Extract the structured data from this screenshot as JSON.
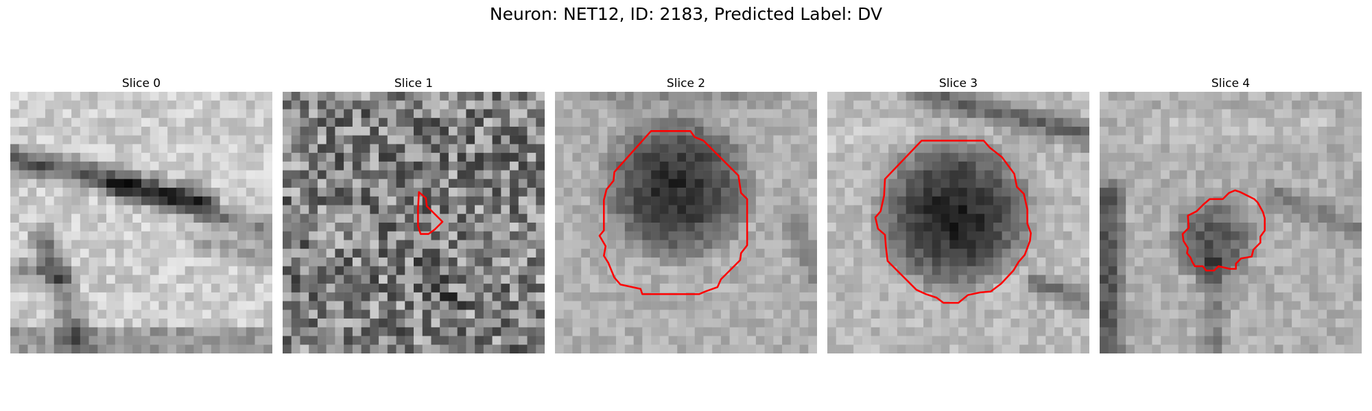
{
  "figure": {
    "title": "Neuron: NET12, ID: 2183, Predicted Label: DV"
  },
  "colors": {
    "contour": "#ff0000",
    "background": "#ffffff"
  },
  "slices": [
    {
      "label": "Slice 0",
      "has_contour": false
    },
    {
      "label": "Slice 1",
      "has_contour": true
    },
    {
      "label": "Slice 2",
      "has_contour": true
    },
    {
      "label": "Slice 3",
      "has_contour": true
    },
    {
      "label": "Slice 4",
      "has_contour": true
    }
  ]
}
